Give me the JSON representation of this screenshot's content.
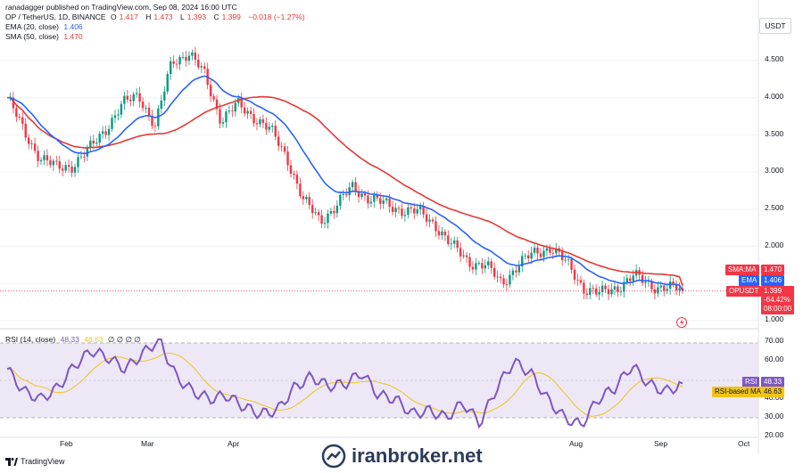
{
  "header": {
    "published_by": "ranadagger published on TradingView.com, Sep 08, 2024 16:00 UTC",
    "symbol": "OP / TetherUS, 1D, BINANCE",
    "o_label": "O",
    "o_value": "1.417",
    "h_label": "H",
    "h_value": "1.473",
    "l_label": "L",
    "l_value": "1.393",
    "c_label": "C",
    "c_value": "1.399",
    "change": "−0.018 (−1.27%)",
    "ema_name": "EMA (20, close)",
    "ema_value": "1.406",
    "sma_name": "SMA (50, close)",
    "sma_value": "1.470"
  },
  "price_axis": {
    "currency": "USDT",
    "ticks": [
      "4.500",
      "4.000",
      "3.500",
      "3.000",
      "2.500",
      "2.000",
      "1.000"
    ]
  },
  "badges": {
    "sma_label": "SMA:MA",
    "sma_value": "1.470",
    "ema_label": "EMA",
    "ema_value": "1.406",
    "symbol_label": "OPUSDT",
    "price": "1.399",
    "pct": "-64.42%",
    "countdown": "08:00:00"
  },
  "rsi": {
    "legend": "RSI (14, close)",
    "value": "48.33",
    "zeros": "∅ ∅ ∅ ∅",
    "rsi_label": "RSI",
    "rsi_ma_label": "RSI-based MA",
    "rsi_ma_value": "46.63",
    "ticks": [
      "70.00",
      "60.00",
      "40.00",
      "30.00",
      "20.00"
    ]
  },
  "time_axis": [
    "Feb",
    "Mar",
    "Apr",
    "Aug",
    "Sep",
    "Oct"
  ],
  "footer": {
    "tv_brand": "TradingView",
    "watermark": "iranbroker.net"
  },
  "colors": {
    "up": "#089981",
    "down": "#f23645",
    "ema": "#2962ff",
    "sma": "#e53935",
    "rsi_line": "#7e57c2",
    "rsi_ma": "#f0c419",
    "rsi_band": "#ede7f6"
  },
  "chart_data": [
    {
      "type": "candlestick",
      "title": "OP / TetherUS, 1D, BINANCE",
      "ylabel": "USDT",
      "ylim": [
        0.75,
        4.9
      ],
      "x_months": [
        "Feb",
        "Mar",
        "Apr",
        "Aug",
        "Sep",
        "Oct"
      ],
      "approx_weekly_close": [
        4.0,
        3.55,
        3.2,
        3.05,
        3.1,
        3.3,
        3.6,
        3.9,
        4.05,
        3.6,
        4.5,
        4.6,
        4.3,
        3.7,
        3.9,
        3.75,
        3.55,
        3.2,
        2.6,
        2.35,
        2.55,
        2.8,
        2.65,
        2.55,
        2.5,
        2.45,
        2.3,
        2.0,
        1.8,
        1.75,
        1.5,
        1.75,
        1.9,
        2.0,
        1.75,
        1.45,
        1.35,
        1.45,
        1.6,
        1.48,
        1.45,
        1.4
      ],
      "last_close": 1.399,
      "series": [
        {
          "name": "EMA (20, close)",
          "last": 1.406
        },
        {
          "name": "SMA (50, close)",
          "last": 1.47
        }
      ]
    },
    {
      "type": "line",
      "title": "RSI (14, close)",
      "ylim": [
        20,
        75
      ],
      "levels": [
        70,
        30
      ],
      "approx_weekly_rsi": [
        56,
        44,
        40,
        46,
        58,
        66,
        62,
        56,
        64,
        72,
        52,
        44,
        40,
        42,
        36,
        32,
        34,
        46,
        52,
        47,
        48,
        54,
        42,
        40,
        32,
        34,
        30,
        38,
        27,
        46,
        60,
        54,
        40,
        30,
        26,
        40,
        46,
        58,
        48,
        44,
        48
      ],
      "series": [
        {
          "name": "RSI",
          "last": 48.33
        },
        {
          "name": "RSI-based MA",
          "last": 46.63
        }
      ]
    }
  ]
}
